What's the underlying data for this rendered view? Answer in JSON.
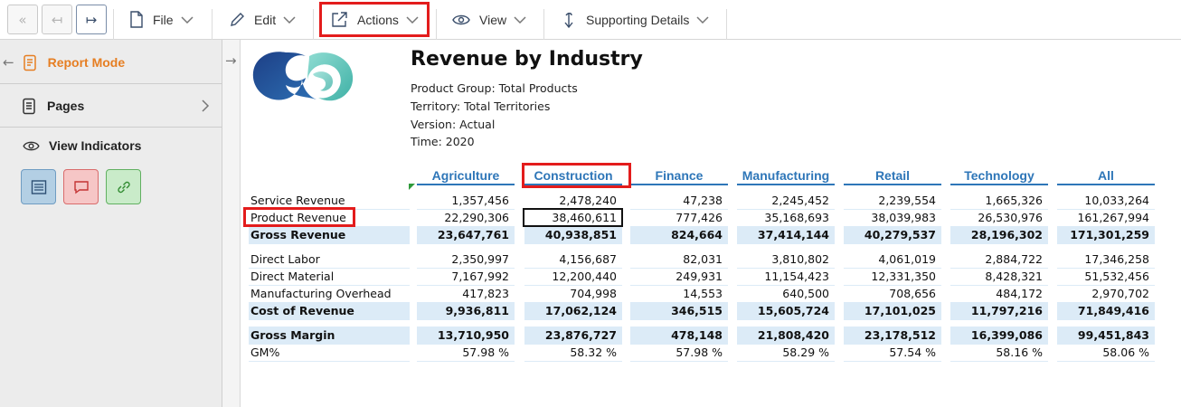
{
  "toolbar": {
    "file_label": "File",
    "edit_label": "Edit",
    "actions_label": "Actions",
    "view_label": "View",
    "supporting_label": "Supporting Details"
  },
  "sidebar": {
    "report_mode": "Report Mode",
    "pages": "Pages",
    "view_indicators": "View Indicators"
  },
  "colors": {
    "accent": "#e67e22",
    "header_blue": "#2e76b8",
    "highlight_red": "#e31c1c",
    "band": "#dcebf7"
  },
  "report": {
    "title": "Revenue by Industry",
    "meta": [
      "Product Group: Total Products",
      "Territory: Total Territories",
      "Version: Actual",
      "Time: 2020"
    ],
    "columns": [
      "Agriculture",
      "Construction",
      "Finance",
      "Manufacturing",
      "Retail",
      "Technology",
      "All"
    ],
    "rows": [
      {
        "label": "Service Revenue",
        "bold": false,
        "values": [
          "1,357,456",
          "2,478,240",
          "47,238",
          "2,245,452",
          "2,239,554",
          "1,665,326",
          "10,033,264"
        ]
      },
      {
        "label": "Product Revenue",
        "bold": false,
        "values": [
          "22,290,306",
          "38,460,611",
          "777,426",
          "35,168,693",
          "38,039,983",
          "26,530,976",
          "161,267,994"
        ]
      },
      {
        "label": "Gross Revenue",
        "bold": true,
        "values": [
          "23,647,761",
          "40,938,851",
          "824,664",
          "37,414,144",
          "40,279,537",
          "28,196,302",
          "171,301,259"
        ]
      },
      {
        "label": "Direct Labor",
        "bold": false,
        "values": [
          "2,350,997",
          "4,156,687",
          "82,031",
          "3,810,802",
          "4,061,019",
          "2,884,722",
          "17,346,258"
        ]
      },
      {
        "label": "Direct Material",
        "bold": false,
        "values": [
          "7,167,992",
          "12,200,440",
          "249,931",
          "11,154,423",
          "12,331,350",
          "8,428,321",
          "51,532,456"
        ]
      },
      {
        "label": "Manufacturing Overhead",
        "bold": false,
        "values": [
          "417,823",
          "704,998",
          "14,553",
          "640,500",
          "708,656",
          "484,172",
          "2,970,702"
        ]
      },
      {
        "label": "Cost of Revenue",
        "bold": true,
        "values": [
          "9,936,811",
          "17,062,124",
          "346,515",
          "15,605,724",
          "17,101,025",
          "11,797,216",
          "71,849,416"
        ]
      },
      {
        "label": "Gross Margin",
        "bold": true,
        "values": [
          "13,710,950",
          "23,876,727",
          "478,148",
          "21,808,420",
          "23,178,512",
          "16,399,086",
          "99,451,843"
        ]
      },
      {
        "label": "GM%",
        "bold": false,
        "values": [
          "57.98 %",
          "58.32 %",
          "57.98 %",
          "58.29 %",
          "57.54 %",
          "58.16 %",
          "58.06 %"
        ]
      }
    ]
  }
}
